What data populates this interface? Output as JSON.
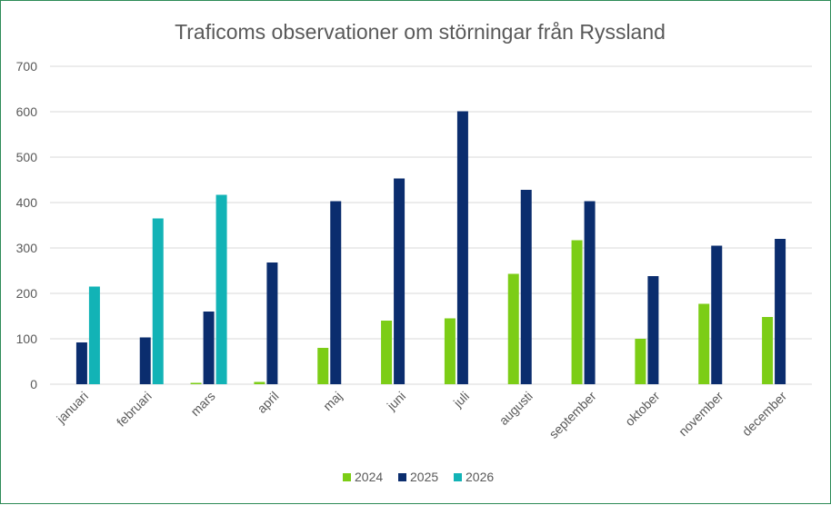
{
  "chart_data": {
    "type": "bar",
    "title": "Traficoms observationer om störningar från Ryssland",
    "xlabel": "",
    "ylabel": "",
    "ylim": [
      0,
      700
    ],
    "yticks": [
      0,
      100,
      200,
      300,
      400,
      500,
      600,
      700
    ],
    "grid": true,
    "legend_position": "bottom",
    "categories": [
      "januari",
      "februari",
      "mars",
      "april",
      "maj",
      "juni",
      "juli",
      "augusti",
      "september",
      "oktober",
      "november",
      "december"
    ],
    "series": [
      {
        "name": "2024",
        "color": "#7ccd16",
        "values": [
          null,
          null,
          3,
          5,
          80,
          140,
          145,
          243,
          317,
          100,
          177,
          148
        ]
      },
      {
        "name": "2025",
        "color": "#0b2d6e",
        "values": [
          92,
          103,
          160,
          268,
          403,
          453,
          601,
          428,
          403,
          238,
          305,
          320
        ]
      },
      {
        "name": "2026",
        "color": "#12b3b6",
        "values": [
          215,
          365,
          417,
          null,
          null,
          null,
          null,
          null,
          null,
          null,
          null,
          null
        ]
      }
    ]
  }
}
